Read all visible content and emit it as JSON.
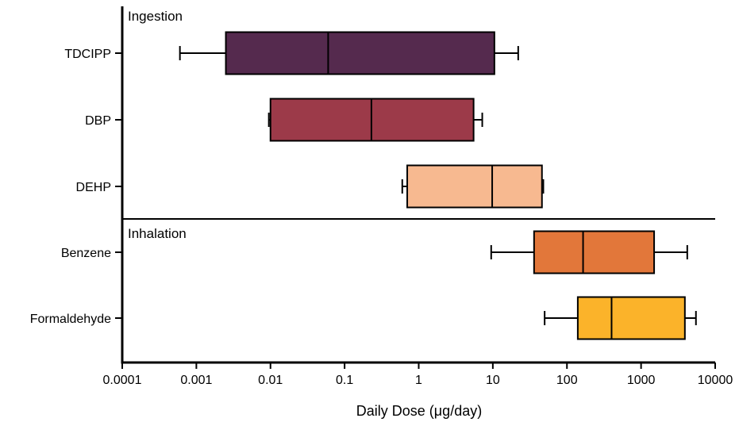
{
  "chart_data": {
    "type": "box",
    "xlabel": "Daily Dose (μg/day)",
    "ylabel": "",
    "xscale": "log",
    "xlim": [
      0.0001,
      10000
    ],
    "x_ticks": [
      "0.0001",
      "0.001",
      "0.01",
      "0.1",
      "1",
      "10",
      "100",
      "1000",
      "10000"
    ],
    "x_tick_values": [
      0.0001,
      0.001,
      0.01,
      0.1,
      1,
      10,
      100,
      1000,
      10000
    ],
    "groups": [
      {
        "label": "Ingestion",
        "items": [
          {
            "name": "TDCIPP",
            "min": 0.0006,
            "q1": 0.0025,
            "median": 0.06,
            "q3": 10.5,
            "max": 22,
            "color": "#552a4e"
          },
          {
            "name": "DBP",
            "min": 0.0095,
            "q1": 0.01,
            "median": 0.23,
            "q3": 5.5,
            "max": 7.2,
            "color": "#9c3a49"
          },
          {
            "name": "DEHP",
            "min": 0.6,
            "q1": 0.7,
            "median": 9.8,
            "q3": 46,
            "max": 48,
            "color": "#f7b990"
          }
        ]
      },
      {
        "label": "Inhalation",
        "items": [
          {
            "name": "Benzene",
            "min": 9.5,
            "q1": 36,
            "median": 165,
            "q3": 1500,
            "max": 4200,
            "color": "#e2773a"
          },
          {
            "name": "Formaldehyde",
            "min": 50,
            "q1": 140,
            "median": 400,
            "q3": 3900,
            "max": 5500,
            "color": "#fbb32a"
          }
        ]
      }
    ],
    "grid": false,
    "legend": "none"
  }
}
